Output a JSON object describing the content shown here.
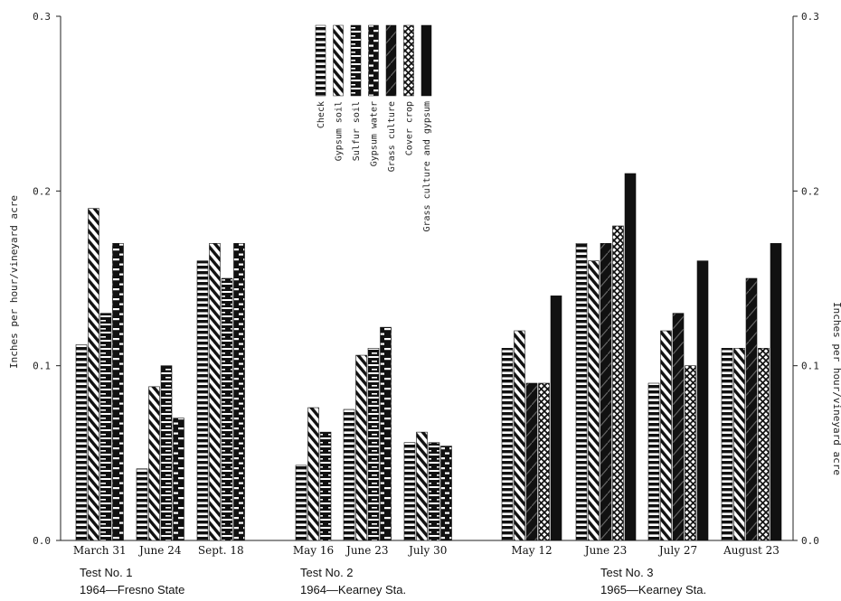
{
  "chart_data": {
    "type": "bar",
    "ylabel": "Inches per hour/vineyard acre",
    "ylabel_right": "Inches per hour/vineyard acre",
    "ylim": [
      0,
      0.3
    ],
    "yticks": [
      "0.0",
      "0.1",
      "0.2",
      "0.3"
    ],
    "yticks_right": [
      "0.0",
      "0.1",
      "0.2",
      "0.3"
    ],
    "series": [
      {
        "name": "Check",
        "pattern": "hbars"
      },
      {
        "name": "Gypsum soil",
        "pattern": "diag"
      },
      {
        "name": "Sulfur soil",
        "pattern": "blocks"
      },
      {
        "name": "Gypsum water",
        "pattern": "dashes"
      },
      {
        "name": "Grass culture",
        "pattern": "solid-light"
      },
      {
        "name": "Cover crop",
        "pattern": "cross"
      },
      {
        "name": "Grass culture and gypsum",
        "pattern": "solid"
      }
    ],
    "groups": [
      {
        "date": "March 31",
        "test": 0,
        "bars": [
          {
            "s": 0,
            "v": 0.112
          },
          {
            "s": 1,
            "v": 0.19
          },
          {
            "s": 2,
            "v": 0.13
          },
          {
            "s": 3,
            "v": 0.17
          }
        ]
      },
      {
        "date": "June 24",
        "test": 0,
        "bars": [
          {
            "s": 0,
            "v": 0.041
          },
          {
            "s": 1,
            "v": 0.088
          },
          {
            "s": 2,
            "v": 0.1
          },
          {
            "s": 3,
            "v": 0.07
          }
        ]
      },
      {
        "date": "Sept. 18",
        "test": 0,
        "bars": [
          {
            "s": 0,
            "v": 0.16
          },
          {
            "s": 1,
            "v": 0.17
          },
          {
            "s": 2,
            "v": 0.15
          },
          {
            "s": 3,
            "v": 0.17
          }
        ]
      },
      {
        "date": "May 16",
        "test": 1,
        "bars": [
          {
            "s": 0,
            "v": 0.043
          },
          {
            "s": 1,
            "v": 0.076
          },
          {
            "s": 2,
            "v": 0.062
          }
        ]
      },
      {
        "date": "June 23",
        "test": 1,
        "bars": [
          {
            "s": 0,
            "v": 0.075
          },
          {
            "s": 1,
            "v": 0.106
          },
          {
            "s": 2,
            "v": 0.11
          },
          {
            "s": 3,
            "v": 0.122
          }
        ]
      },
      {
        "date": "July 30",
        "test": 1,
        "bars": [
          {
            "s": 0,
            "v": 0.056
          },
          {
            "s": 1,
            "v": 0.062
          },
          {
            "s": 2,
            "v": 0.056
          },
          {
            "s": 3,
            "v": 0.054
          }
        ]
      },
      {
        "date": "May 12",
        "test": 2,
        "bars": [
          {
            "s": 0,
            "v": 0.11
          },
          {
            "s": 1,
            "v": 0.12
          },
          {
            "s": 4,
            "v": 0.09
          },
          {
            "s": 5,
            "v": 0.09
          },
          {
            "s": 6,
            "v": 0.14
          }
        ]
      },
      {
        "date": "June 23",
        "test": 2,
        "bars": [
          {
            "s": 0,
            "v": 0.17
          },
          {
            "s": 1,
            "v": 0.16
          },
          {
            "s": 4,
            "v": 0.17
          },
          {
            "s": 5,
            "v": 0.18
          },
          {
            "s": 6,
            "v": 0.21
          }
        ]
      },
      {
        "date": "July 27",
        "test": 2,
        "bars": [
          {
            "s": 0,
            "v": 0.09
          },
          {
            "s": 1,
            "v": 0.12
          },
          {
            "s": 4,
            "v": 0.13
          },
          {
            "s": 5,
            "v": 0.1
          },
          {
            "s": 6,
            "v": 0.16
          }
        ]
      },
      {
        "date": "August 23",
        "test": 2,
        "bars": [
          {
            "s": 0,
            "v": 0.11
          },
          {
            "s": 1,
            "v": 0.11
          },
          {
            "s": 4,
            "v": 0.15
          },
          {
            "s": 5,
            "v": 0.11
          },
          {
            "s": 6,
            "v": 0.17
          }
        ]
      }
    ],
    "tests": [
      {
        "title": "Test No. 1",
        "subtitle": "1964—Fresno State"
      },
      {
        "title": "Test No. 2",
        "subtitle": "1964—Kearney Sta."
      },
      {
        "title": "Test No. 3",
        "subtitle": "1965—Kearney Sta."
      }
    ]
  }
}
